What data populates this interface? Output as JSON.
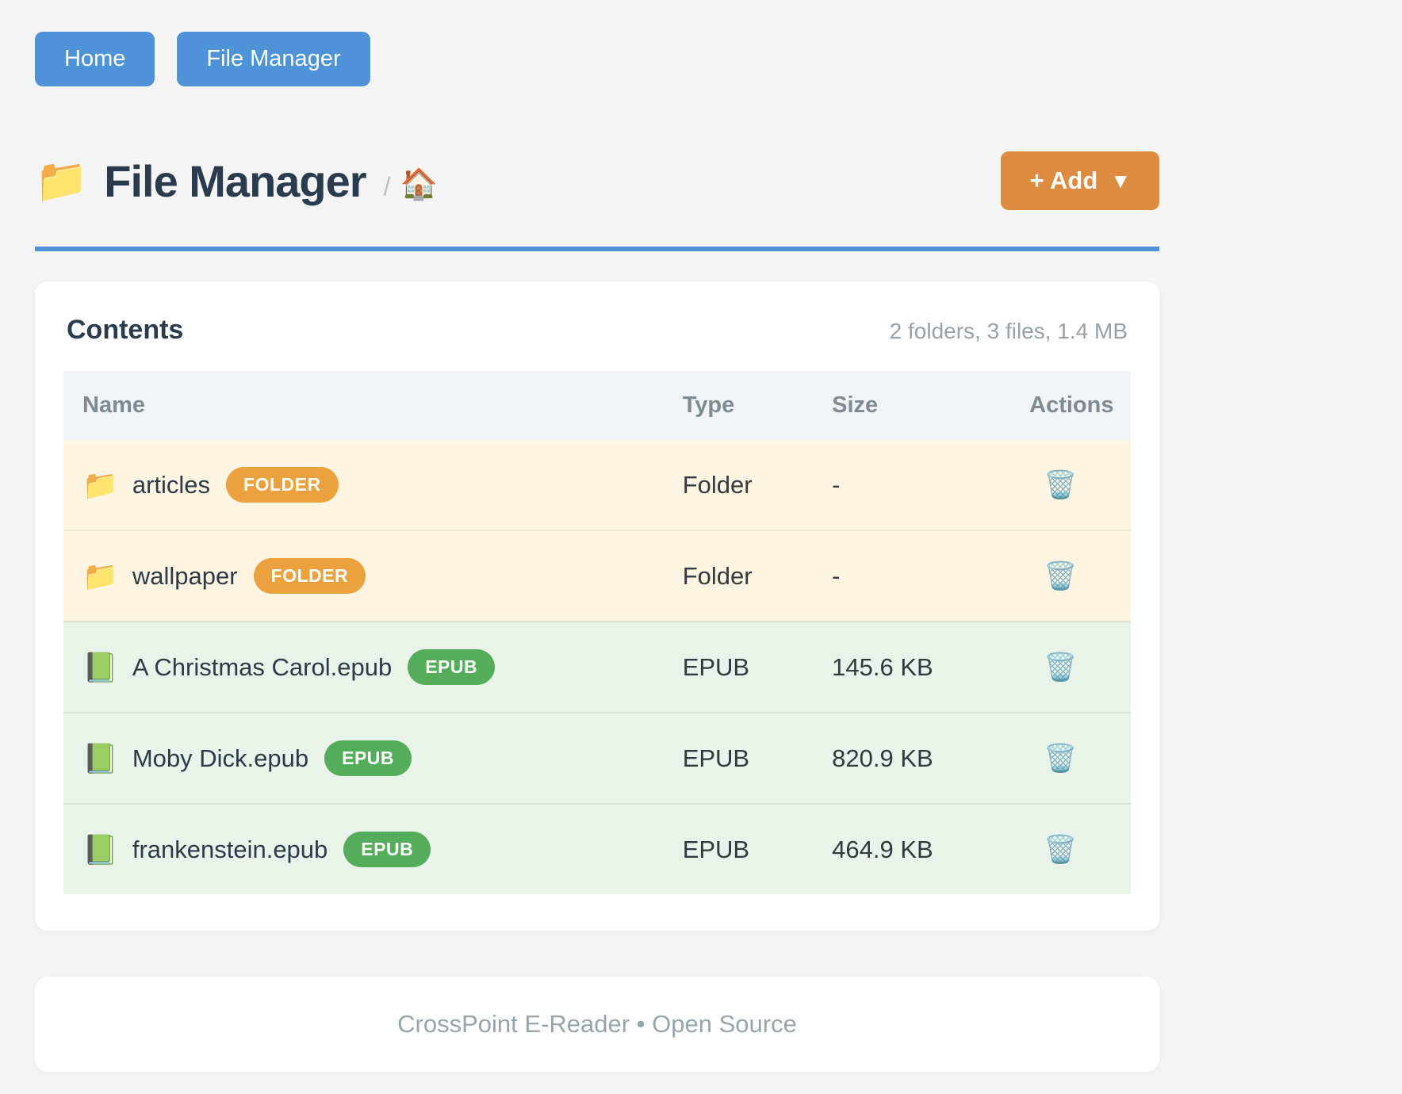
{
  "nav": {
    "home_label": "Home",
    "file_manager_label": "File Manager"
  },
  "header": {
    "title_icon": "📁",
    "title": "File Manager",
    "breadcrumb_separator": "/",
    "breadcrumb_home_icon": "🏠",
    "add_label": "+ Add",
    "add_caret": "▼"
  },
  "contents": {
    "title": "Contents",
    "summary": "2 folders, 3 files, 1.4 MB",
    "columns": [
      "Name",
      "Type",
      "Size",
      "Actions"
    ],
    "action_icon": "🗑️",
    "rows": [
      {
        "icon": "📁",
        "name": "articles",
        "badge": "FOLDER",
        "kind": "folder",
        "type": "Folder",
        "size": "-"
      },
      {
        "icon": "📁",
        "name": "wallpaper",
        "badge": "FOLDER",
        "kind": "folder",
        "type": "Folder",
        "size": "-"
      },
      {
        "icon": "📗",
        "name": "A Christmas Carol.epub",
        "badge": "EPUB",
        "kind": "epub",
        "type": "EPUB",
        "size": "145.6 KB"
      },
      {
        "icon": "📗",
        "name": "Moby Dick.epub",
        "badge": "EPUB",
        "kind": "epub",
        "type": "EPUB",
        "size": "820.9 KB"
      },
      {
        "icon": "📗",
        "name": "frankenstein.epub",
        "badge": "EPUB",
        "kind": "epub",
        "type": "EPUB",
        "size": "464.9 KB"
      }
    ]
  },
  "footer": {
    "text": "CrossPoint E-Reader • Open Source"
  },
  "colors": {
    "accent_blue": "#4e93d8",
    "accent_orange": "#dd8b3e",
    "badge_folder": "#eba23e",
    "badge_epub": "#53ad5a",
    "row_folder_bg": "#fdf5e1",
    "row_epub_bg": "#e9f3e9",
    "page_bg": "#f4f4f5"
  }
}
